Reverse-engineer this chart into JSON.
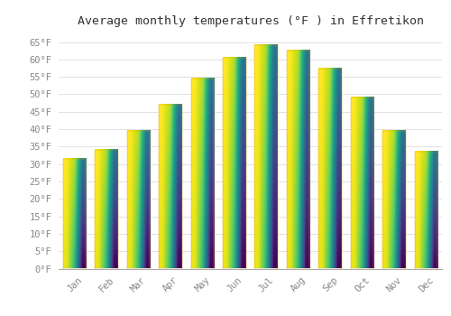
{
  "title": "Average monthly temperatures (°F ) in Effretikon",
  "months": [
    "Jan",
    "Feb",
    "Mar",
    "Apr",
    "May",
    "Jun",
    "Jul",
    "Aug",
    "Sep",
    "Oct",
    "Nov",
    "Dec"
  ],
  "values": [
    31.5,
    34.0,
    39.5,
    47.0,
    54.5,
    60.5,
    64.0,
    62.5,
    57.5,
    49.0,
    39.5,
    33.5
  ],
  "bar_color_bottom": "#F5A800",
  "bar_color_top": "#FFE066",
  "background_color": "#FFFFFF",
  "grid_color": "#DDDDDD",
  "ylim": [
    0,
    68
  ],
  "yticks": [
    0,
    5,
    10,
    15,
    20,
    25,
    30,
    35,
    40,
    45,
    50,
    55,
    60,
    65
  ],
  "title_fontsize": 9.5,
  "tick_fontsize": 7.5,
  "tick_color": "#888888",
  "title_color": "#333333"
}
